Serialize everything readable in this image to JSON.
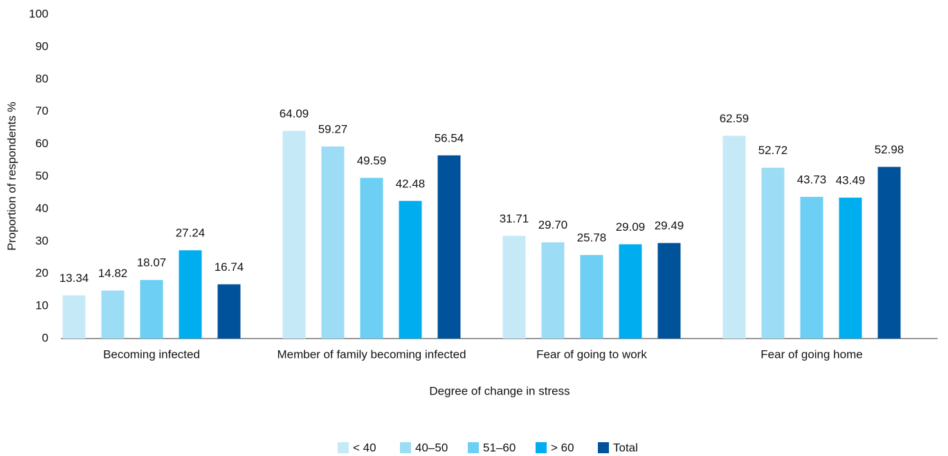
{
  "chart_data": {
    "type": "bar",
    "y_label": "Proportion of respondents %",
    "x_label": "Degree of change in stress",
    "categories": [
      "Becoming infected",
      "Member of family becoming infected",
      "Fear of going to work",
      "Fear of going home"
    ],
    "series": [
      {
        "name": "< 40",
        "color": "#c6e9f8",
        "values": [
          13.34,
          64.09,
          31.71,
          62.59
        ],
        "value_labels": [
          "13.34",
          "64.09",
          "31.71",
          "62.59"
        ]
      },
      {
        "name": "40–50",
        "color": "#9ddcf5",
        "values": [
          14.82,
          59.27,
          29.7,
          52.72
        ],
        "value_labels": [
          "14.82",
          "59.27",
          "29.70",
          "52.72"
        ]
      },
      {
        "name": "51–60",
        "color": "#6ccff3",
        "values": [
          18.07,
          49.59,
          25.78,
          43.73
        ],
        "value_labels": [
          "18.07",
          "49.59",
          "25.78",
          "43.73"
        ]
      },
      {
        "name": "> 60",
        "color": "#00aeef",
        "values": [
          27.24,
          42.48,
          29.09,
          43.49
        ],
        "value_labels": [
          "27.24",
          "42.48",
          "29.09",
          "43.49"
        ]
      },
      {
        "name": "Total",
        "color": "#00539b",
        "values": [
          16.74,
          56.54,
          29.49,
          52.98
        ],
        "value_labels": [
          "16.74",
          "56.54",
          "29.49",
          "52.98"
        ]
      }
    ],
    "ylim": [
      0,
      100
    ],
    "yticks": [
      0,
      10,
      20,
      30,
      40,
      50,
      60,
      70,
      80,
      90,
      100
    ],
    "grid": false,
    "legend": "bottom"
  }
}
